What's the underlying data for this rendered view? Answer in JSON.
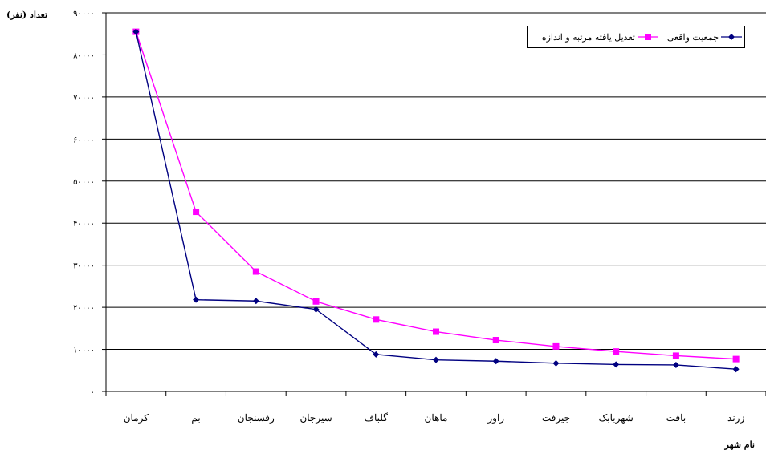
{
  "chart_data": {
    "type": "line",
    "ylabel": "تعداد (نفر)",
    "xlabel": "نام شهر",
    "ylim": [
      0,
      90000
    ],
    "y_ticks": [
      "۰",
      "۱۰۰۰۰",
      "۲۰۰۰۰",
      "۳۰۰۰۰",
      "۴۰۰۰۰",
      "۵۰۰۰۰",
      "۶۰۰۰۰",
      "۷۰۰۰۰",
      "۸۰۰۰۰",
      "۹۰۰۰۰"
    ],
    "y_tick_values": [
      0,
      10000,
      20000,
      30000,
      40000,
      50000,
      60000,
      70000,
      80000,
      90000
    ],
    "categories": [
      "کرمان",
      "بم",
      "رفسنجان",
      "سیرجان",
      "گلباف",
      "ماهان",
      "راور",
      "جیرفت",
      "شهربابک",
      "بافت",
      "زرند"
    ],
    "grid": true,
    "legend_position": "top-right",
    "series": [
      {
        "name": "جمعیت واقعی",
        "color": "#000080",
        "marker": "diamond",
        "values": [
          85500,
          21800,
          21500,
          19500,
          8800,
          7500,
          7200,
          6700,
          6400,
          6300,
          5300
        ]
      },
      {
        "name": "تعدیل یافته مرتبه و اندازه",
        "color": "#ff00ff",
        "marker": "square",
        "values": [
          85500,
          42700,
          28500,
          21400,
          17100,
          14200,
          12200,
          10700,
          9500,
          8500,
          7700
        ]
      }
    ]
  }
}
